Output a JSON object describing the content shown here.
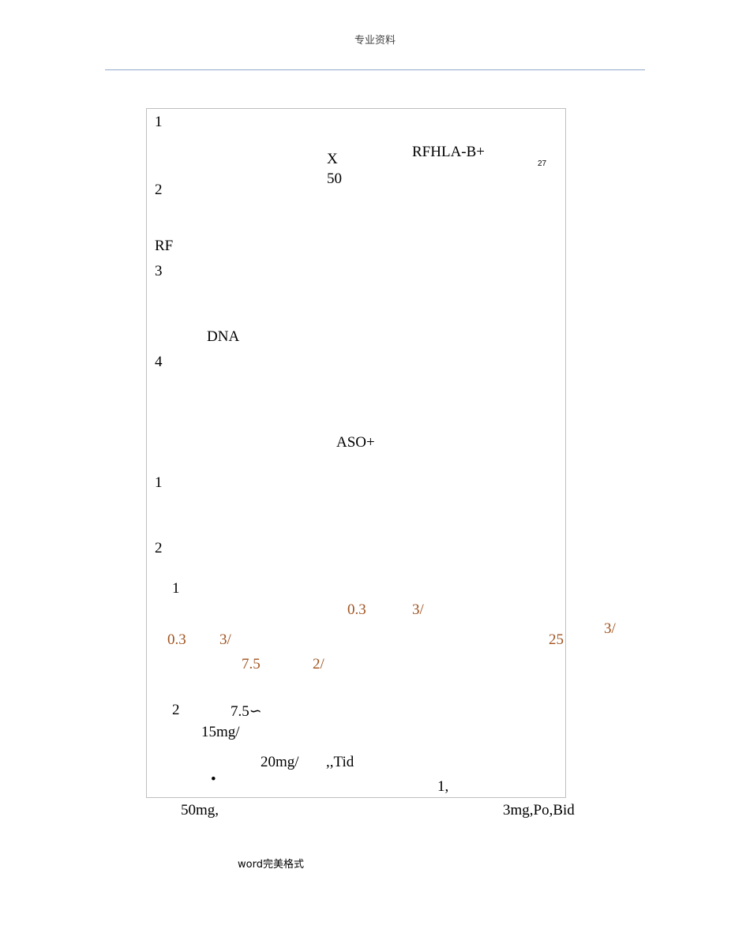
{
  "header": {
    "title": "专业资料"
  },
  "body": {
    "items": [
      "1",
      "X",
      "50",
      "RFHLA-B+",
      "27",
      "2",
      "RF",
      "3",
      "DNA",
      "4",
      "ASO+",
      "1",
      "2",
      "1",
      "0.3",
      "3/",
      "3/",
      "0.3",
      "3/",
      "25",
      "7.5",
      "2/",
      "2",
      "7.5∽",
      "15mg/",
      "20mg/",
      ",,Tid",
      "•",
      "1,",
      "50mg,",
      "3mg,Po,Bid"
    ]
  },
  "footer": {
    "text": "word完美格式"
  }
}
